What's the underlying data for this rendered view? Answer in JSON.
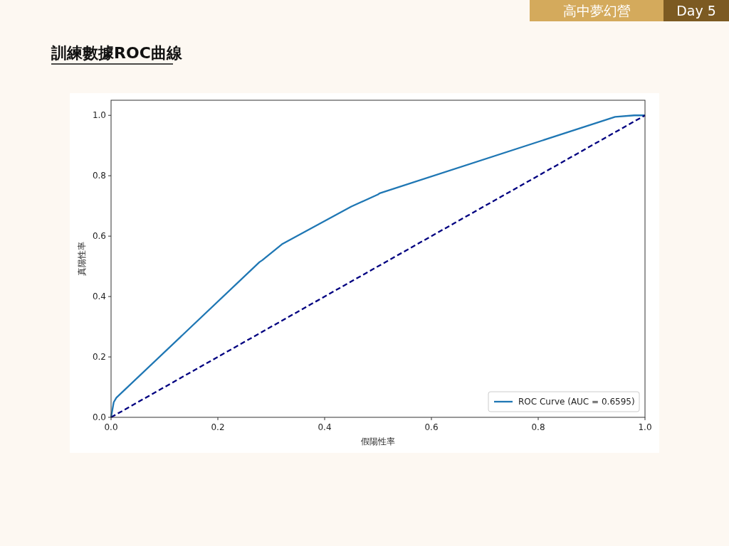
{
  "chart_data": {
    "type": "line",
    "title": "訓練數據ROC曲線",
    "xlabel": "假陽性率",
    "ylabel": "真陽性率",
    "annotations": [
      "高中夢幻營",
      "Day 5"
    ],
    "xlim": [
      0,
      1
    ],
    "ylim": [
      0,
      1.05
    ],
    "xticks": [
      {
        "value": 0,
        "label": "0.0"
      },
      0.2,
      0.4,
      0.6,
      0.8,
      {
        "value": 1,
        "label": "1.0"
      }
    ],
    "yticks": [
      {
        "value": 0,
        "label": "0.0"
      },
      0.2,
      0.4,
      0.6,
      0.8,
      {
        "value": 1,
        "label": "1.0"
      }
    ],
    "legend": "bottom right",
    "series": [
      {
        "name": "ROC Curve (AUC = 0.6595)",
        "color": "#1f77b4",
        "line_style": "solid",
        "x": [
          0,
          0.003,
          0.005,
          0.01,
          0.278,
          0.283,
          0.32,
          0.45,
          0.5,
          0.503,
          0.944,
          0.98,
          1
        ],
        "values": [
          0,
          0.03,
          0.05,
          0.065,
          0.514,
          0.52,
          0.573,
          0.698,
          0.738,
          0.742,
          0.995,
          1.0,
          1.0
        ]
      },
      {
        "color": "#000080",
        "line_style": "dashed",
        "x": [
          0,
          1
        ],
        "values": [
          0,
          1
        ]
      }
    ]
  }
}
